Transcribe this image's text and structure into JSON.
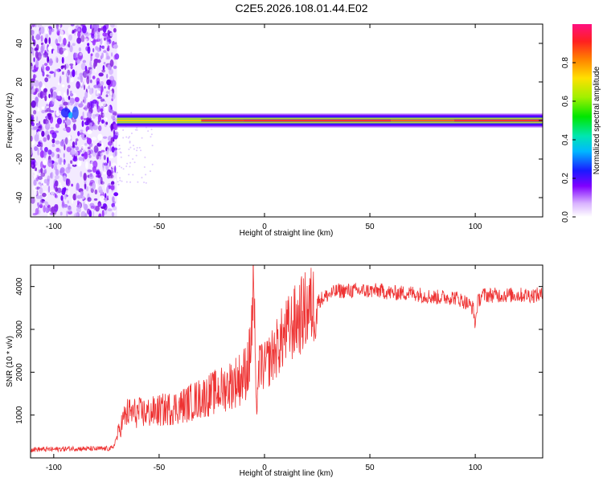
{
  "title": "C2E5.2026.108.01.44.E02",
  "chart_data": [
    {
      "type": "heatmap",
      "xlabel": "Height of straight line (km)",
      "ylabel": "Frequency (Hz)",
      "xlim": [
        -111,
        132
      ],
      "ylim": [
        -50,
        50
      ],
      "xticks": [
        -100,
        -50,
        0,
        50,
        100
      ],
      "yticks": [
        -40,
        -20,
        0,
        20,
        40
      ],
      "colorbar": {
        "label": "Normalized spectral amplitude",
        "range": [
          0,
          1
        ],
        "ticks": [
          "0.0",
          "0.2",
          "0.4",
          "0.6",
          "0.8"
        ]
      },
      "features": {
        "noise_region_x": [
          -111,
          -70
        ],
        "signal_band_start_x": -70,
        "signal_band_center_hz": 0
      }
    },
    {
      "type": "line",
      "xlabel": "Height of straight line (km)",
      "ylabel": "SNR (10 * v/v)",
      "xlim": [
        -111,
        132
      ],
      "ylim": [
        0,
        4500
      ],
      "xticks": [
        -100,
        -50,
        0,
        50,
        100
      ],
      "yticks": [
        1000,
        2000,
        3000,
        4000
      ],
      "color": "#ee3333",
      "x": [
        -111,
        -100,
        -90,
        -80,
        -72,
        -70,
        -67,
        -65,
        -60,
        -55,
        -50,
        -45,
        -40,
        -35,
        -30,
        -25,
        -20,
        -15,
        -10,
        -7,
        -5,
        -4,
        -3,
        -2,
        0,
        5,
        10,
        15,
        20,
        25,
        30,
        35,
        40,
        45,
        50,
        55,
        60,
        65,
        70,
        75,
        80,
        85,
        90,
        95,
        99,
        100,
        101,
        103,
        105,
        110,
        115,
        120,
        125,
        132
      ],
      "values": [
        200,
        200,
        220,
        210,
        220,
        500,
        900,
        1050,
        1050,
        1050,
        1100,
        1150,
        1200,
        1300,
        1400,
        1500,
        1600,
        1750,
        1900,
        2300,
        4000,
        1000,
        1900,
        2200,
        2100,
        2500,
        2900,
        3200,
        3450,
        3650,
        3800,
        3900,
        3900,
        3900,
        3900,
        3900,
        3850,
        3850,
        3850,
        3800,
        3750,
        3750,
        3750,
        3650,
        3500,
        3100,
        3600,
        3800,
        3800,
        3800,
        3800,
        3800,
        3800,
        3800
      ]
    }
  ]
}
